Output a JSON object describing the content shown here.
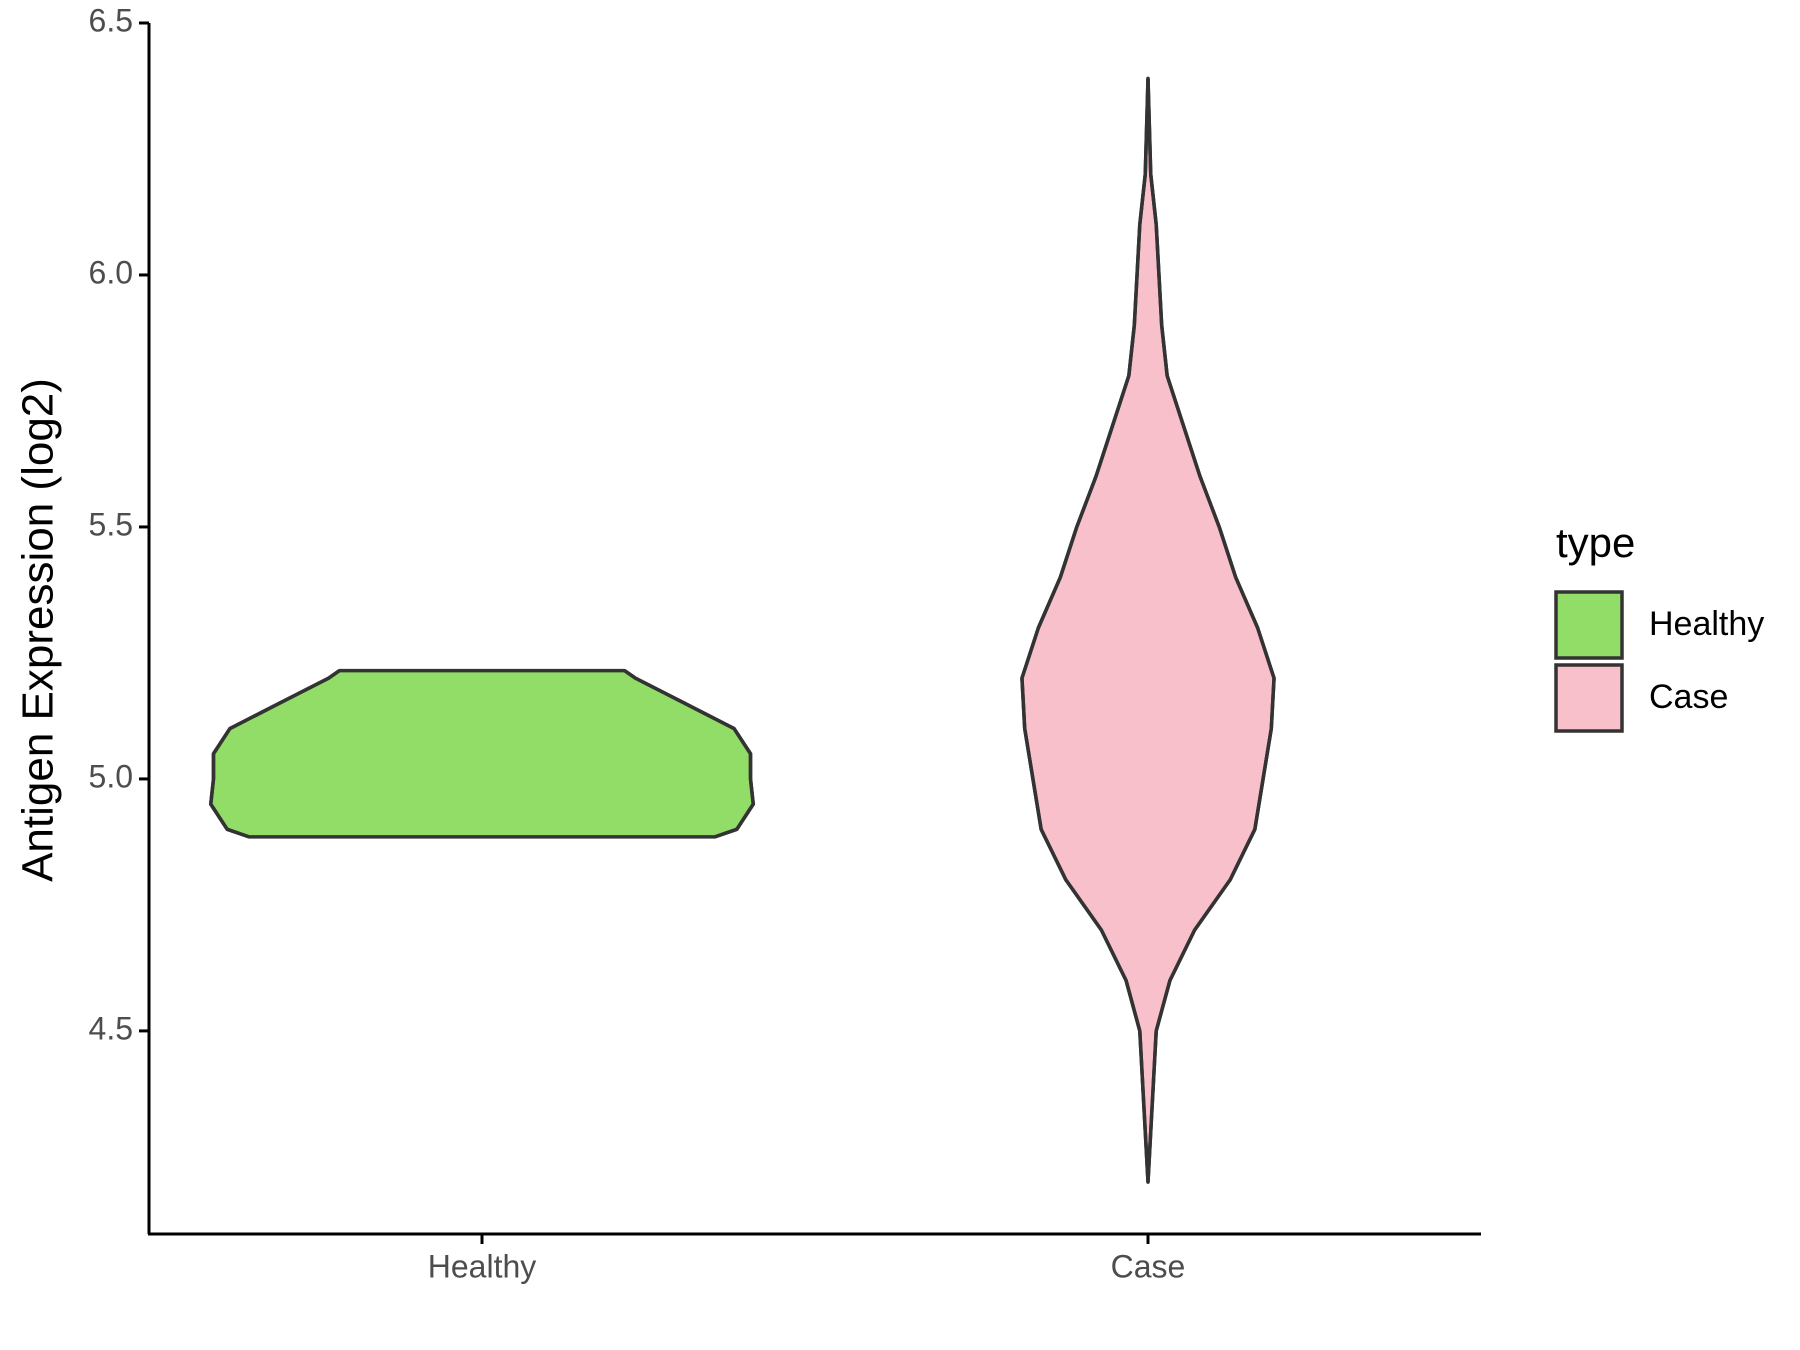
{
  "chart_data": {
    "type": "violin",
    "y_label": "Antigen Expression (log2)",
    "categories": [
      "Healthy",
      "Case"
    ],
    "legend_title": "type",
    "series": [
      {
        "name": "Healthy",
        "color": "#92dd68",
        "y": [
          4.885,
          4.9,
          4.95,
          5.0,
          5.05,
          5.1,
          5.15,
          5.2,
          5.215
        ],
        "density": [
          0.85,
          0.93,
          0.99,
          0.98,
          0.98,
          0.92,
          0.74,
          0.56,
          0.52
        ]
      },
      {
        "name": "Case",
        "color": "#f7c0cb",
        "y": [
          4.2,
          4.3,
          4.4,
          4.5,
          4.6,
          4.7,
          4.8,
          4.9,
          5.0,
          5.1,
          5.2,
          5.3,
          5.4,
          5.5,
          5.6,
          5.7,
          5.8,
          5.9,
          6.0,
          6.1,
          6.2,
          6.39
        ],
        "density": [
          0,
          0.01,
          0.02,
          0.03,
          0.08,
          0.17,
          0.3,
          0.39,
          0.42,
          0.45,
          0.46,
          0.4,
          0.32,
          0.26,
          0.19,
          0.13,
          0.07,
          0.05,
          0.04,
          0.03,
          0.01,
          0
        ]
      }
    ],
    "ylim": [
      4.097,
      6.5
    ],
    "yticks": [
      4.5,
      {
        "value": 5,
        "label": "5.0"
      },
      5.5,
      {
        "value": 6,
        "label": "6.0"
      },
      6.5
    ]
  }
}
